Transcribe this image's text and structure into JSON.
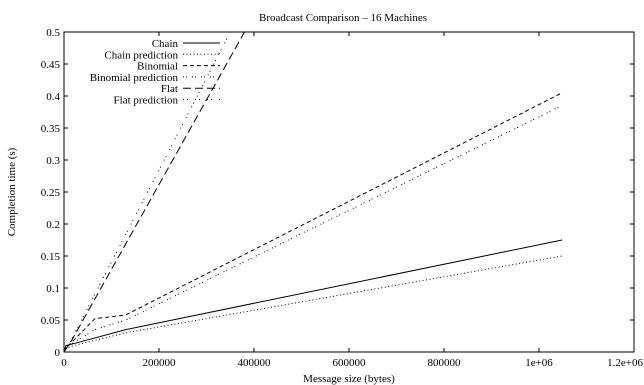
{
  "chart_data": {
    "type": "line",
    "title": "Broadcast Comparison – 16 Machines",
    "xlabel": "Message size (bytes)",
    "ylabel": "Completion time (s)",
    "xlim": [
      0,
      1200000
    ],
    "ylim": [
      0,
      0.5
    ],
    "x_ticks": [
      {
        "value": 0,
        "label": "0"
      },
      {
        "value": 200000,
        "label": "200000"
      },
      {
        "value": 400000,
        "label": "400000"
      },
      {
        "value": 600000,
        "label": "600000"
      },
      {
        "value": 800000,
        "label": "800000"
      },
      {
        "value": 1000000,
        "label": "1e+06"
      },
      {
        "value": 1200000,
        "label": "1.2e+06"
      }
    ],
    "y_ticks": [
      {
        "value": 0,
        "label": "0"
      },
      {
        "value": 0.05,
        "label": "0.05"
      },
      {
        "value": 0.1,
        "label": "0.1"
      },
      {
        "value": 0.15,
        "label": "0.15"
      },
      {
        "value": 0.2,
        "label": "0.2"
      },
      {
        "value": 0.25,
        "label": "0.25"
      },
      {
        "value": 0.3,
        "label": "0.3"
      },
      {
        "value": 0.35,
        "label": "0.35"
      },
      {
        "value": 0.4,
        "label": "0.4"
      },
      {
        "value": 0.45,
        "label": "0.45"
      },
      {
        "value": 0.5,
        "label": "0.5"
      }
    ],
    "grid": false,
    "legend_position": "top-left",
    "series": [
      {
        "name": "Chain",
        "dash": "solid",
        "points": [
          [
            0,
            0.0
          ],
          [
            4000,
            0.01
          ],
          [
            20000,
            0.013
          ],
          [
            130000,
            0.035
          ],
          [
            1048576,
            0.175
          ]
        ]
      },
      {
        "name": "Chain prediction",
        "dash": "dotted",
        "points": [
          [
            0,
            0.0
          ],
          [
            4000,
            0.006
          ],
          [
            20000,
            0.01
          ],
          [
            130000,
            0.03
          ],
          [
            1048576,
            0.15
          ]
        ]
      },
      {
        "name": "Binomial",
        "dash": "dashed",
        "points": [
          [
            0,
            0.0
          ],
          [
            2000,
            0.004
          ],
          [
            8000,
            0.009
          ],
          [
            65000,
            0.052
          ],
          [
            130000,
            0.058
          ],
          [
            1048576,
            0.405
          ]
        ]
      },
      {
        "name": "Binomial prediction",
        "dash": "dashdot-fine",
        "points": [
          [
            0,
            0.0
          ],
          [
            8000,
            0.009
          ],
          [
            65000,
            0.035
          ],
          [
            130000,
            0.05
          ],
          [
            1048576,
            0.385
          ]
        ]
      },
      {
        "name": "Flat",
        "dash": "longdash",
        "points": [
          [
            0,
            0.0
          ],
          [
            16000,
            0.018
          ],
          [
            380000,
            0.5
          ]
        ]
      },
      {
        "name": "Flat prediction",
        "dash": "dashdot",
        "points": [
          [
            0,
            0.0
          ],
          [
            16000,
            0.02
          ],
          [
            350000,
            0.5
          ]
        ]
      }
    ]
  }
}
